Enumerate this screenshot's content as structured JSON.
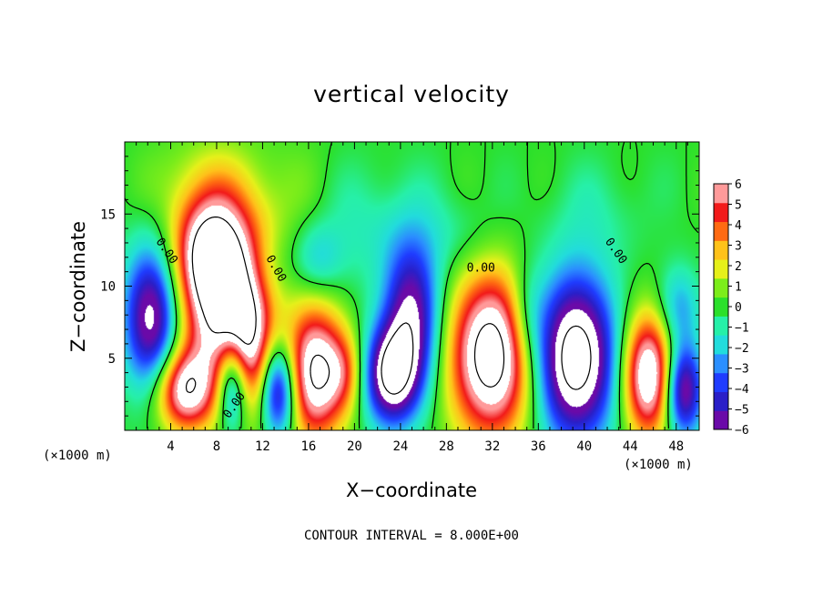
{
  "chart_data": {
    "type": "heatmap",
    "title": "vertical velocity",
    "xlabel": "X−coordinate",
    "ylabel": "Z−coordinate",
    "x_unit_label": "(×1000 m)",
    "z_unit_label": "(×1000 m)",
    "xlim": [
      0,
      50
    ],
    "ylim": [
      0,
      20
    ],
    "x_ticks": [
      4,
      8,
      12,
      16,
      20,
      24,
      28,
      32,
      36,
      40,
      44,
      48
    ],
    "y_ticks": [
      5,
      10,
      15
    ],
    "colorbar": {
      "min": -6,
      "max": 6,
      "ticks": [
        6,
        5,
        4,
        3,
        2,
        1,
        0,
        -1,
        -2,
        -3,
        -4,
        -5,
        -6
      ],
      "tick_labels": [
        "6",
        "5",
        "4",
        "3",
        "2",
        "1",
        "0",
        "−1",
        "−2",
        "−3",
        "−4",
        "−5",
        "−6"
      ],
      "colors": [
        "#6a0aa8",
        "#2a1fc8",
        "#1f3cff",
        "#2b8fff",
        "#22dcdc",
        "#26f0a8",
        "#2be02b",
        "#7ced1a",
        "#e6f01a",
        "#ffc21a",
        "#ff6a12",
        "#f21a1a",
        "#ff9a9a"
      ],
      "saturation_color": "#ffffff"
    },
    "contour_label": "0.00",
    "contour_interval_text": "CONTOUR INTERVAL = 8.000E+00",
    "cells": [
      {
        "x": 2.4,
        "z": 7.8,
        "sx": 1.7,
        "sz": 3.5,
        "w": -7.5
      },
      {
        "x": 5.2,
        "z": 2.8,
        "sx": 1.8,
        "sz": 2.0,
        "w": 7.2
      },
      {
        "x": 8.6,
        "z": 9.8,
        "sx": 2.8,
        "sz": 4.5,
        "w": 9.0
      },
      {
        "x": 7.2,
        "z": 12.5,
        "sx": 2.0,
        "sz": 2.5,
        "w": 4.0
      },
      {
        "x": 10.4,
        "z": 5.8,
        "sx": 1.6,
        "sz": 3.5,
        "w": 5.5
      },
      {
        "x": 9.4,
        "z": 3.5,
        "sx": 1.0,
        "sz": 2.5,
        "w": -7.5
      },
      {
        "x": 13.4,
        "z": 2.8,
        "sx": 1.1,
        "sz": 2.3,
        "w": -7.0
      },
      {
        "x": 16.6,
        "z": 4.0,
        "sx": 1.8,
        "sz": 3.3,
        "w": 8.2
      },
      {
        "x": 19.2,
        "z": 4.0,
        "sx": 1.2,
        "sz": 2.0,
        "w": 3.0
      },
      {
        "x": 23.2,
        "z": 3.8,
        "sx": 1.7,
        "sz": 2.4,
        "w": -8.0
      },
      {
        "x": 25.0,
        "z": 8.0,
        "sx": 1.7,
        "sz": 3.5,
        "w": -6.5
      },
      {
        "x": 32.0,
        "z": 5.2,
        "sx": 2.6,
        "sz": 4.0,
        "w": 9.5
      },
      {
        "x": 39.2,
        "z": 5.0,
        "sx": 2.5,
        "sz": 4.0,
        "w": -9.5
      },
      {
        "x": 45.6,
        "z": 3.8,
        "sx": 1.6,
        "sz": 3.0,
        "w": 8.6
      },
      {
        "x": 48.6,
        "z": 2.8,
        "sx": 1.2,
        "sz": 2.3,
        "w": -7.2
      },
      {
        "x": 48.2,
        "z": 8.5,
        "sx": 1.3,
        "sz": 2.0,
        "w": -2.8
      },
      {
        "x": 12.0,
        "z": 11.0,
        "sx": 1.8,
        "sz": 2.0,
        "w": -1.5
      },
      {
        "x": 16.8,
        "z": 11.8,
        "sx": 1.5,
        "sz": 1.8,
        "w": -2.0
      },
      {
        "x": 14.5,
        "z": 16.0,
        "sx": 3.0,
        "sz": 3.0,
        "w": 0.8
      },
      {
        "x": 21.0,
        "z": 14.0,
        "sx": 4.0,
        "sz": 3.0,
        "w": -1.2
      },
      {
        "x": 29.0,
        "z": 13.5,
        "sx": 3.0,
        "sz": 2.0,
        "w": -0.9
      },
      {
        "x": 41.0,
        "z": 15.0,
        "sx": 3.0,
        "sz": 2.5,
        "w": -0.8
      },
      {
        "x": 6.0,
        "z": 17.0,
        "sx": 3.0,
        "sz": 2.5,
        "w": 1.0
      },
      {
        "x": 35.0,
        "z": 8.0,
        "sx": 1.2,
        "sz": 2.5,
        "w": -2.2
      }
    ]
  }
}
